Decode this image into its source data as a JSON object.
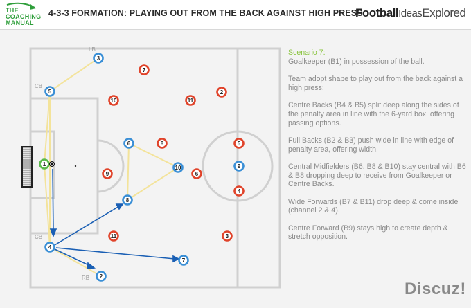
{
  "header": {
    "logo_line1": "THE",
    "logo_line2": "COACHING",
    "logo_line3": "MANUAL",
    "title": "4-3-3 FORMATION: PLAYING OUT FROM THE BACK AGAINST HIGH PRESS",
    "brand_bold": "Football",
    "brand_mid": "Ideas",
    "brand_end": "Explored"
  },
  "colors": {
    "blue_team": "#3a8fd6",
    "red_team": "#e0432a",
    "goalkeeper": "#5ab94a",
    "arrow": "#1a5fb4",
    "support_line": "#f3e39a",
    "pitch_line": "#d0d0d0",
    "accent_green": "#8ac43f"
  },
  "labels": {
    "lb": "LB",
    "cb_top": "CB",
    "cb_bottom": "CB",
    "rb": "RB"
  },
  "players": {
    "blue": {
      "p1": "1",
      "p3": "3",
      "p5": "5",
      "p6": "6",
      "p10": "10",
      "p8": "8",
      "p9": "9",
      "p4": "4",
      "p2": "2",
      "p7": "7"
    },
    "red": {
      "r7": "7",
      "r2": "2",
      "r10": "10",
      "r11a": "11",
      "r8": "8",
      "r5": "5",
      "r9": "9",
      "r6": "6",
      "r4": "4",
      "r11b": "11",
      "r3": "3"
    }
  },
  "panel": {
    "heading": "Scenario 7:",
    "line1": "Goalkeeper (B1) in possession of the ball.",
    "para2": "Team adopt shape to play out from the back against a high press;",
    "para3": "Centre Backs (B4 & B5) split deep along the sides of the penalty area in line with the 6-yard box, offering passing options.",
    "para4": "Full Backs (B2 & B3) push wide in line with edge of penalty area, offering width.",
    "para5": "Central Midfielders (B6, B8 & B10) stay central with B6 & B8 dropping deep to receive from Goalkeeper or Centre Backs.",
    "para6": "Wide Forwards (B7 & B11) drop deep & come inside (channel 2 & 4).",
    "para7": "Centre Forward (B9) stays high to create depth & stretch opposition."
  },
  "watermark": "Discuz!"
}
